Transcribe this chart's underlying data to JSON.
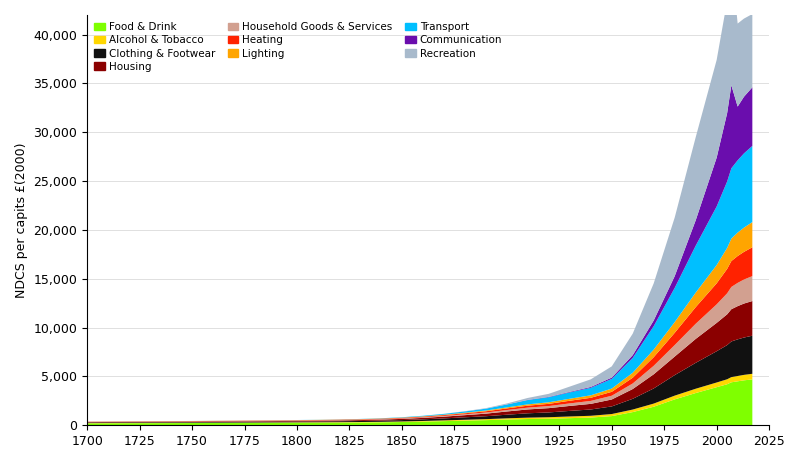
{
  "ylabel": "NDCS per capits £(2000)",
  "ylim": [
    0,
    42000
  ],
  "yticks": [
    0,
    5000,
    10000,
    15000,
    20000,
    25000,
    30000,
    35000,
    40000
  ],
  "xticks": [
    1700,
    1725,
    1750,
    1775,
    1800,
    1825,
    1850,
    1875,
    1900,
    1925,
    1950,
    1975,
    2000,
    2025
  ],
  "years": [
    1700,
    1710,
    1720,
    1730,
    1740,
    1750,
    1760,
    1770,
    1780,
    1790,
    1800,
    1810,
    1820,
    1830,
    1840,
    1850,
    1860,
    1870,
    1880,
    1890,
    1900,
    1910,
    1920,
    1930,
    1940,
    1950,
    1960,
    1970,
    1980,
    1990,
    2000,
    2005,
    2007,
    2010,
    2013,
    2017
  ],
  "categories": [
    "Food & Drink",
    "Alcohol & Tobacco",
    "Clothing & Footwear",
    "Housing",
    "Household Goods & Services",
    "Heating",
    "Lighting",
    "Transport",
    "Communication",
    "Recreation"
  ],
  "colors": [
    "#7FFF00",
    "#FFD700",
    "#111111",
    "#8B0000",
    "#D2A090",
    "#FF2200",
    "#FFA500",
    "#00BFFF",
    "#6A0DAD",
    "#A8BACC"
  ],
  "legend_order": [
    [
      0,
      3,
      6
    ],
    [
      1,
      4,
      7
    ],
    [
      2,
      5,
      8
    ],
    [
      9
    ]
  ],
  "data": {
    "Food & Drink": [
      200,
      208,
      215,
      220,
      225,
      230,
      238,
      244,
      250,
      258,
      265,
      270,
      278,
      288,
      305,
      335,
      375,
      425,
      475,
      525,
      590,
      640,
      670,
      730,
      790,
      940,
      1350,
      1900,
      2650,
      3300,
      3900,
      4200,
      4400,
      4500,
      4600,
      4700
    ],
    "Alcohol & Tobacco": [
      25,
      26,
      27,
      28,
      29,
      30,
      31,
      32,
      33,
      35,
      37,
      39,
      41,
      45,
      50,
      57,
      65,
      75,
      88,
      103,
      122,
      142,
      155,
      172,
      182,
      210,
      260,
      320,
      385,
      440,
      480,
      510,
      530,
      545,
      560,
      570
    ],
    "Clothing & Footwear": [
      55,
      57,
      58,
      59,
      60,
      62,
      65,
      67,
      70,
      73,
      78,
      83,
      92,
      106,
      122,
      140,
      168,
      205,
      252,
      298,
      370,
      445,
      490,
      570,
      645,
      780,
      1100,
      1550,
      2100,
      2650,
      3200,
      3500,
      3650,
      3750,
      3820,
      3900
    ],
    "Housing": [
      45,
      47,
      49,
      51,
      53,
      55,
      58,
      60,
      64,
      68,
      72,
      77,
      83,
      92,
      105,
      122,
      148,
      180,
      220,
      265,
      330,
      395,
      440,
      510,
      575,
      710,
      1000,
      1450,
      1900,
      2450,
      2900,
      3150,
      3300,
      3400,
      3480,
      3550
    ],
    "Household Goods & Services": [
      18,
      19,
      20,
      21,
      22,
      23,
      24,
      25,
      26,
      28,
      30,
      32,
      35,
      38,
      43,
      50,
      60,
      74,
      92,
      115,
      148,
      185,
      212,
      258,
      302,
      385,
      570,
      870,
      1180,
      1550,
      1900,
      2150,
      2280,
      2380,
      2460,
      2550
    ],
    "Heating": [
      22,
      23,
      24,
      25,
      26,
      27,
      28,
      29,
      31,
      33,
      35,
      37,
      39,
      43,
      48,
      56,
      67,
      82,
      102,
      128,
      165,
      200,
      228,
      272,
      318,
      400,
      590,
      880,
      1250,
      1700,
      2150,
      2500,
      2650,
      2750,
      2830,
      2950
    ],
    "Lighting": [
      8,
      8,
      9,
      9,
      10,
      10,
      11,
      11,
      12,
      13,
      14,
      15,
      17,
      19,
      22,
      27,
      34,
      44,
      58,
      76,
      102,
      135,
      162,
      205,
      255,
      335,
      510,
      780,
      1100,
      1490,
      1870,
      2150,
      2300,
      2400,
      2480,
      2580
    ],
    "Transport": [
      4,
      4,
      4,
      5,
      5,
      5,
      6,
      6,
      7,
      8,
      9,
      11,
      14,
      18,
      25,
      37,
      56,
      82,
      128,
      190,
      295,
      440,
      520,
      650,
      770,
      990,
      1520,
      2400,
      3500,
      4800,
      6000,
      6800,
      7200,
      7400,
      7600,
      7800
    ],
    "Communication": [
      0,
      0,
      0,
      0,
      0,
      0,
      0,
      0,
      0,
      0,
      0,
      0,
      0,
      0,
      0,
      0,
      0,
      0,
      2,
      5,
      12,
      22,
      35,
      55,
      85,
      130,
      280,
      580,
      1200,
      2600,
      5000,
      7000,
      8500,
      5500,
      5800,
      6000
    ],
    "Recreation": [
      0,
      0,
      0,
      0,
      0,
      0,
      0,
      0,
      0,
      0,
      0,
      0,
      0,
      0,
      0,
      0,
      0,
      8,
      22,
      48,
      95,
      195,
      310,
      540,
      780,
      1150,
      2200,
      3800,
      6000,
      8500,
      10000,
      11500,
      13000,
      8500,
      8000,
      7500
    ]
  }
}
